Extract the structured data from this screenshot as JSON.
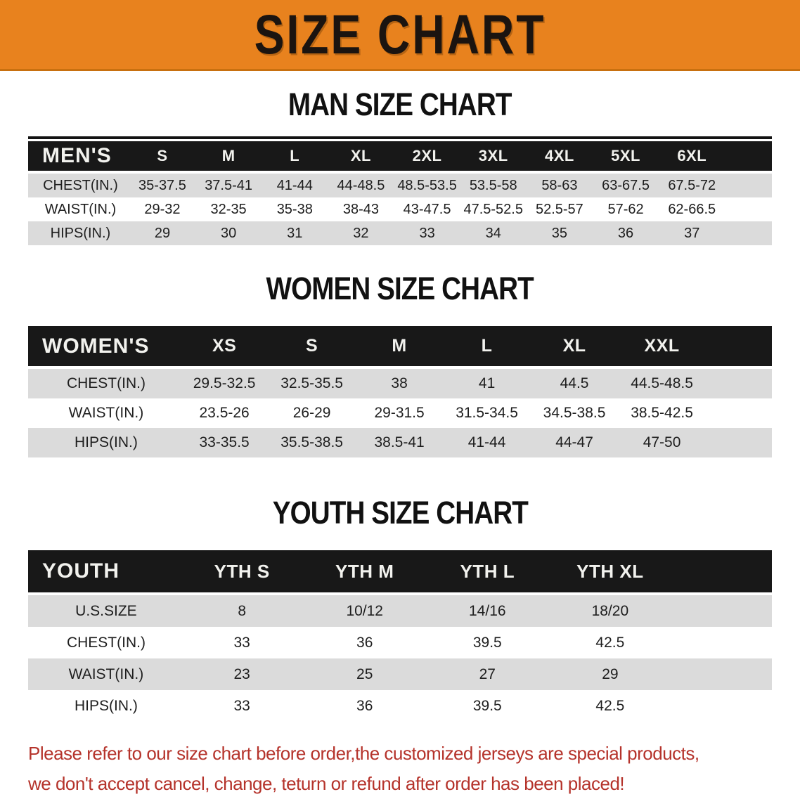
{
  "banner": {
    "title": "SIZE CHART",
    "bg_color": "#E8821E",
    "text_color": "#1B1410"
  },
  "sections": {
    "men": {
      "heading": "MAN SIZE CHART",
      "table": {
        "header": [
          "MEN'S",
          "S",
          "M",
          "L",
          "XL",
          "2XL",
          "3XL",
          "4XL",
          "5XL",
          "6XL"
        ],
        "rows": [
          [
            "CHEST(IN.)",
            "35-37.5",
            "37.5-41",
            "41-44",
            "44-48.5",
            "48.5-53.5",
            "53.5-58",
            "58-63",
            "63-67.5",
            "67.5-72"
          ],
          [
            "WAIST(IN.)",
            "29-32",
            "32-35",
            "35-38",
            "38-43",
            "43-47.5",
            "47.5-52.5",
            "52.5-57",
            "57-62",
            "62-66.5"
          ],
          [
            "HIPS(IN.)",
            "29",
            "30",
            "31",
            "32",
            "33",
            "34",
            "35",
            "36",
            "37"
          ]
        ]
      }
    },
    "women": {
      "heading": "WOMEN SIZE CHART",
      "table": {
        "header": [
          "WOMEN'S",
          "XS",
          "S",
          "M",
          "L",
          "XL",
          "XXL"
        ],
        "rows": [
          [
            "CHEST(IN.)",
            "29.5-32.5",
            "32.5-35.5",
            "38",
            "41",
            "44.5",
            "44.5-48.5"
          ],
          [
            "WAIST(IN.)",
            "23.5-26",
            "26-29",
            "29-31.5",
            "31.5-34.5",
            "34.5-38.5",
            "38.5-42.5"
          ],
          [
            "HIPS(IN.)",
            "33-35.5",
            "35.5-38.5",
            "38.5-41",
            "41-44",
            "44-47",
            "47-50"
          ]
        ]
      }
    },
    "youth": {
      "heading": "YOUTH SIZE CHART",
      "table": {
        "header": [
          "YOUTH",
          "YTH S",
          "YTH M",
          "YTH L",
          "YTH XL"
        ],
        "rows": [
          [
            "U.S.SIZE",
            "8",
            "10/12",
            "14/16",
            "18/20"
          ],
          [
            "CHEST(IN.)",
            "33",
            "36",
            "39.5",
            "42.5"
          ],
          [
            "WAIST(IN.)",
            "23",
            "25",
            "27",
            "29"
          ],
          [
            "HIPS(IN.)",
            "33",
            "36",
            "39.5",
            "42.5"
          ]
        ]
      }
    }
  },
  "footer": {
    "lines": [
      "Please refer to our size chart before order,the customized jerseys are special products,",
      "we don't accept cancel, change, teturn or refund after order has been placed!"
    ],
    "text_color": "#B5332B"
  },
  "colors": {
    "banner_orange": "#E8821E",
    "banner_border": "#C8700F",
    "table_header_bar": "#181818",
    "stripe_gray": "#DBDBDB",
    "stripe_white": "#FFFFFF",
    "notice_red": "#B5332B"
  }
}
